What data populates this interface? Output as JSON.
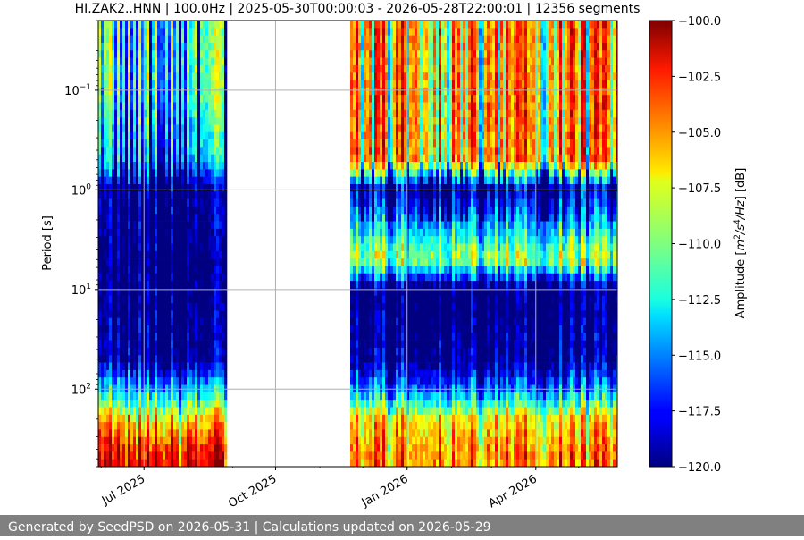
{
  "chart_data": {
    "type": "heatmap",
    "title": "HI.ZAK2..HNN | 100.0Hz | 2025-05-30T00:00:03 - 2026-05-28T22:00:01 | 12356 segments",
    "xlabel": "",
    "ylabel": "Period [s]",
    "colorbar_label": "Amplitude [m²/s⁴/Hz] [dB]",
    "colorbar_label_parts": {
      "prefix": "Amplitude [",
      "m": "m",
      "exp2": "2",
      "slash": "/s",
      "exp4": "4",
      "hz": "/Hz",
      "suffix": "] [dB]"
    },
    "y_scale": "log",
    "y_axis_inverted": true,
    "ylim_period_s": [
      0.02,
      600
    ],
    "xlim": [
      "2025-05-30",
      "2026-05-28"
    ],
    "x_ticks": [
      {
        "date": "2025-07-01",
        "label": "Jul 2025"
      },
      {
        "date": "2025-10-01",
        "label": "Oct 2025"
      },
      {
        "date": "2026-01-01",
        "label": "Jan 2026"
      },
      {
        "date": "2026-04-01",
        "label": "Apr 2026"
      }
    ],
    "y_ticks": [
      {
        "value": 0.1,
        "base": "10",
        "exp": "−1"
      },
      {
        "value": 1,
        "base": "10",
        "exp": "0"
      },
      {
        "value": 10,
        "base": "10",
        "exp": "1"
      },
      {
        "value": 100,
        "base": "10",
        "exp": "2"
      }
    ],
    "colorbar": {
      "min": -120.0,
      "max": -100.0,
      "colormap": "jet",
      "ticks": [
        "−100.0",
        "−102.5",
        "−105.0",
        "−107.5",
        "−110.0",
        "−112.5",
        "−115.0",
        "−117.5",
        "−120.0"
      ]
    },
    "data_gaps": [
      {
        "start": "2025-08-28",
        "end": "2025-11-23"
      }
    ],
    "grid": true,
    "typical_amplitude_db_by_period": [
      {
        "period_s": 0.02,
        "first_segment_db": -110,
        "second_segment_db": -104
      },
      {
        "period_s": 0.1,
        "first_segment_db": -110,
        "second_segment_db": -104
      },
      {
        "period_s": 0.5,
        "first_segment_db": -113,
        "second_segment_db": -104
      },
      {
        "period_s": 1,
        "first_segment_db": -119,
        "second_segment_db": -118
      },
      {
        "period_s": 5,
        "first_segment_db": -120,
        "second_segment_db": -108
      },
      {
        "period_s": 10,
        "first_segment_db": -120,
        "second_segment_db": -120
      },
      {
        "period_s": 50,
        "first_segment_db": -119,
        "second_segment_db": -119
      },
      {
        "period_s": 100,
        "first_segment_db": -113,
        "second_segment_db": -114
      },
      {
        "period_s": 200,
        "first_segment_db": -106,
        "second_segment_db": -106
      },
      {
        "period_s": 500,
        "first_segment_db": -101,
        "second_segment_db": -104
      }
    ]
  },
  "footer": {
    "text": "Generated by SeedPSD on 2026-05-31 | Calculations updated on 2026-05-29"
  }
}
